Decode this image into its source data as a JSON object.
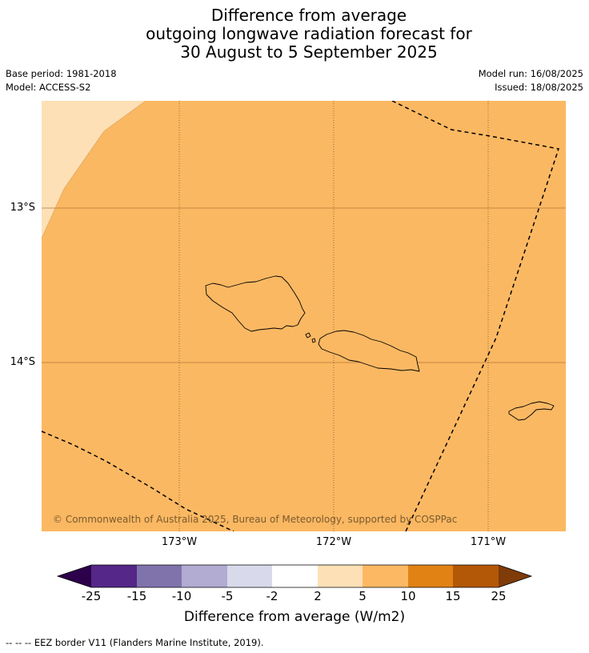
{
  "title": {
    "line1": "Difference from average",
    "line2": "outgoing longwave radiation forecast for",
    "line3": "30 August to 5 September 2025"
  },
  "meta": {
    "base_period": "Base period: 1981-2018",
    "model": "Model: ACCESS-S2",
    "model_run": "Model run: 16/08/2025",
    "issued": "Issued: 18/08/2025"
  },
  "map": {
    "copyright": "© Commonwealth of Australia 2025, Bureau of Meteorology, supported by COSPPac",
    "lat_labels": [
      "13°S",
      "14°S"
    ],
    "lon_labels": [
      "173°W",
      "172°W",
      "171°W"
    ],
    "fill_colors": {
      "dominant": "#fbb862",
      "light": "#fde0b6"
    }
  },
  "colorbar": {
    "ticks": [
      "-25",
      "-15",
      "-10",
      "-5",
      "-2",
      "2",
      "5",
      "10",
      "15",
      "25"
    ],
    "colors": [
      "#2d004b",
      "#542788",
      "#8073ac",
      "#b2abd2",
      "#d8daeb",
      "#ffffff",
      "#fee0b6",
      "#fdb863",
      "#e08214",
      "#b35806",
      "#7f3b08"
    ],
    "label": "Difference from average (W/m2)"
  },
  "footnote": "--  --  -- EEZ border V11 (Flanders Marine Institute, 2019)."
}
